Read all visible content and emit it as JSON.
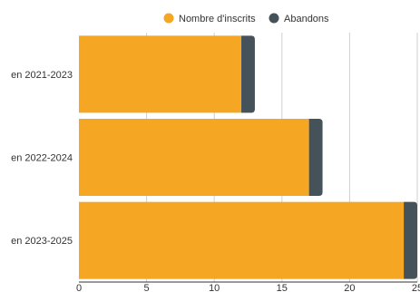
{
  "chart_data": {
    "type": "bar",
    "orientation": "horizontal",
    "stacked": true,
    "categories": [
      "en 2021-2023",
      "en 2022-2024",
      "en 2023-2025"
    ],
    "series": [
      {
        "name": "Nombre d'inscrits",
        "values": [
          12,
          17,
          24
        ],
        "color": "#F5A623"
      },
      {
        "name": "Abandons",
        "values": [
          1,
          1,
          1
        ],
        "color": "#46525A"
      }
    ],
    "xlim": [
      0,
      25
    ],
    "xticks": [
      "0",
      "5",
      "10",
      "15",
      "20",
      "25"
    ],
    "grid": true,
    "legend_position": "top"
  }
}
